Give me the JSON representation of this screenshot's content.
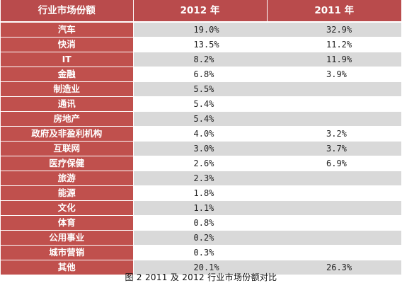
{
  "header": {
    "col_category": "行业市场份额",
    "col_2012": "2012 年",
    "col_2011": "2011 年"
  },
  "rows": [
    {
      "category": "汽车",
      "v2012": "19.0%",
      "v2011": "32.9%"
    },
    {
      "category": "快消",
      "v2012": "13.5%",
      "v2011": "11.2%"
    },
    {
      "category": "IT",
      "v2012": "8.2%",
      "v2011": "11.9%"
    },
    {
      "category": "金融",
      "v2012": "6.8%",
      "v2011": "3.9%"
    },
    {
      "category": "制造业",
      "v2012": "5.5%",
      "v2011": ""
    },
    {
      "category": "通讯",
      "v2012": "5.4%",
      "v2011": ""
    },
    {
      "category": "房地产",
      "v2012": "5.4%",
      "v2011": ""
    },
    {
      "category": "政府及非盈利机构",
      "v2012": "4.0%",
      "v2011": "3.2%"
    },
    {
      "category": "互联网",
      "v2012": "3.0%",
      "v2011": "3.7%"
    },
    {
      "category": "医疗保健",
      "v2012": "2.6%",
      "v2011": "6.9%"
    },
    {
      "category": "旅游",
      "v2012": "2.3%",
      "v2011": ""
    },
    {
      "category": "能源",
      "v2012": "1.8%",
      "v2011": ""
    },
    {
      "category": "文化",
      "v2012": "1.1%",
      "v2011": ""
    },
    {
      "category": "体育",
      "v2012": "0.8%",
      "v2011": ""
    },
    {
      "category": "公用事业",
      "v2012": "0.2%",
      "v2011": ""
    },
    {
      "category": "城市营销",
      "v2012": "0.3%",
      "v2011": ""
    },
    {
      "category": "其他",
      "v2012": "20.1%",
      "v2011": "26.3%"
    }
  ],
  "caption": "图 2   2011 及 2012 行业市场份额对比",
  "colors": {
    "category_red": "#c0504d",
    "header_red": "#b94b4c",
    "stripe_gray": "#d9d9d9"
  }
}
